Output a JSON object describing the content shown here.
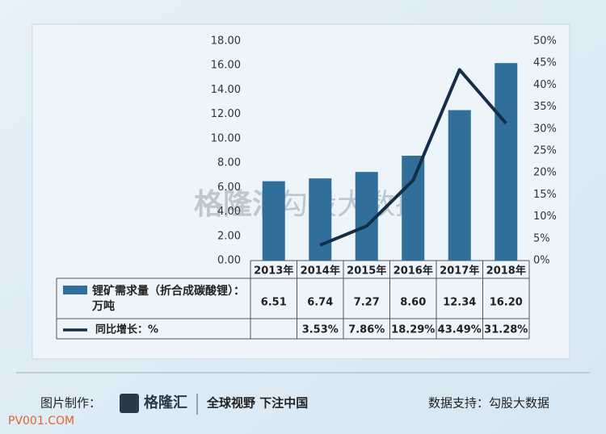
{
  "chart_data": {
    "type": "bar",
    "categories": [
      "2013年",
      "2014年",
      "2015年",
      "2016年",
      "2017年",
      "2018年"
    ],
    "series": [
      {
        "name": "锂矿需求量（折合成碳酸锂）：万吨",
        "type": "bar",
        "color": "#2f6f99",
        "values": [
          6.51,
          6.74,
          7.27,
          8.6,
          12.34,
          16.2
        ],
        "value_labels": [
          "6.51",
          "6.74",
          "7.27",
          "8.60",
          "12.34",
          "16.20"
        ]
      },
      {
        "name": "同比增长：%",
        "type": "line",
        "axis": "y2",
        "color": "#152e47",
        "values": [
          null,
          3.53,
          7.86,
          18.29,
          43.49,
          31.28
        ],
        "value_labels": [
          null,
          "3.53%",
          "7.86%",
          "18.29%",
          "43.49%",
          "31.28%"
        ]
      }
    ],
    "ylim": [
      0,
      18
    ],
    "yticks": [
      {
        "value": 0,
        "label": "0.00"
      },
      {
        "value": 2,
        "label": "2.00"
      },
      {
        "value": 4,
        "label": "4.00"
      },
      {
        "value": 6,
        "label": "6.00"
      },
      {
        "value": 8,
        "label": "8.00"
      },
      {
        "value": 10,
        "label": "10.00"
      },
      {
        "value": 12,
        "label": "12.00"
      },
      {
        "value": 14,
        "label": "14.00"
      },
      {
        "value": 16,
        "label": "16.00"
      },
      {
        "value": 18,
        "label": "18.00"
      }
    ],
    "y2lim": [
      0,
      50
    ],
    "y2ticks": [
      {
        "value": 0,
        "label": "0%"
      },
      {
        "value": 5,
        "label": "5%"
      },
      {
        "value": 10,
        "label": "10%"
      },
      {
        "value": 15,
        "label": "15%"
      },
      {
        "value": 20,
        "label": "20%"
      },
      {
        "value": 25,
        "label": "25%"
      },
      {
        "value": 30,
        "label": "30%"
      },
      {
        "value": 35,
        "label": "35%"
      },
      {
        "value": 40,
        "label": "40%"
      },
      {
        "value": 45,
        "label": "45%"
      },
      {
        "value": 50,
        "label": "50%"
      }
    ]
  },
  "watermark": {
    "logo": "格隆汇",
    "text": "勾股大数据"
  },
  "footer": {
    "made_by_label": "图片制作：",
    "logo": "格隆汇",
    "slogan": "全球视野 下注中国",
    "source": "数据支持：勾股大数据"
  },
  "site_watermark": "PV001.COM"
}
